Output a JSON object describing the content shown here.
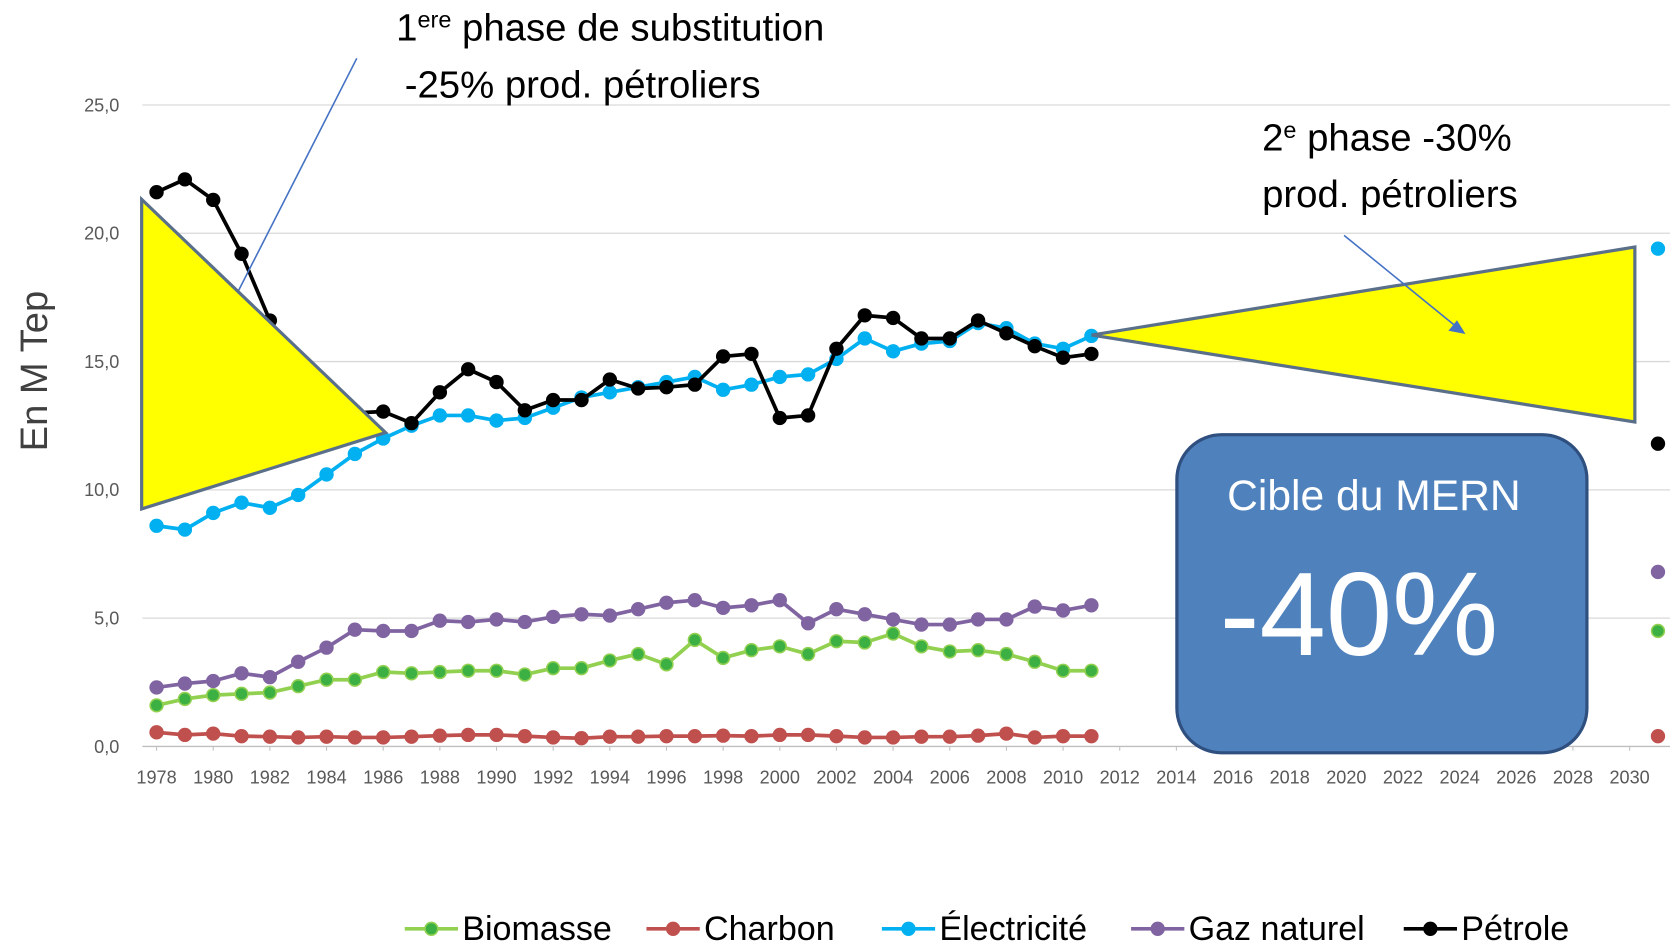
{
  "chart_data": {
    "type": "line",
    "y_label": "En M Tep",
    "x": [
      1978,
      1979,
      1980,
      1981,
      1982,
      1983,
      1984,
      1985,
      1986,
      1987,
      1988,
      1989,
      1990,
      1991,
      1992,
      1993,
      1994,
      1995,
      1996,
      1997,
      1998,
      1999,
      2000,
      2001,
      2002,
      2003,
      2004,
      2005,
      2006,
      2007,
      2008,
      2009,
      2010,
      2011,
      2012,
      2031
    ],
    "xlim": [
      1977.5,
      2031.5
    ],
    "xticks": [
      1978,
      1980,
      1982,
      1984,
      1986,
      1988,
      1990,
      1992,
      1994,
      1996,
      1998,
      2000,
      2002,
      2004,
      2006,
      2008,
      2010,
      2012,
      2014,
      2016,
      2018,
      2020,
      2022,
      2024,
      2026,
      2028,
      2030
    ],
    "ylim": [
      0,
      25
    ],
    "yticks": [
      {
        "value": 0,
        "label": "0,0"
      },
      {
        "value": 5,
        "label": "5,0"
      },
      {
        "value": 10,
        "label": "10,0"
      },
      {
        "value": 15,
        "label": "15,0"
      },
      {
        "value": 20,
        "label": "20,0"
      },
      {
        "value": 25,
        "label": "25,0"
      }
    ],
    "grid": true,
    "legend": "bottom",
    "series": [
      {
        "name": "Biomasse",
        "color": "#92d050",
        "marker_color": "#3cb043",
        "values": [
          1.6,
          1.85,
          2.0,
          2.05,
          2.1,
          2.35,
          2.6,
          2.6,
          2.9,
          2.85,
          2.9,
          2.95,
          2.95,
          2.8,
          3.05,
          3.05,
          3.35,
          3.6,
          3.2,
          4.15,
          3.45,
          3.75,
          3.9,
          3.6,
          4.1,
          4.05,
          4.4,
          3.9,
          3.7,
          3.75,
          3.6,
          3.3,
          2.95,
          2.95,
          null,
          4.5
        ]
      },
      {
        "name": "Charbon",
        "color": "#c0504d",
        "marker_color": "#c0504d",
        "values": [
          0.55,
          0.45,
          0.5,
          0.4,
          0.38,
          0.35,
          0.38,
          0.35,
          0.35,
          0.38,
          0.42,
          0.45,
          0.45,
          0.4,
          0.35,
          0.32,
          0.38,
          0.38,
          0.4,
          0.4,
          0.42,
          0.4,
          0.45,
          0.45,
          0.4,
          0.35,
          0.35,
          0.38,
          0.38,
          0.42,
          0.5,
          0.35,
          0.4,
          0.4,
          null,
          0.4
        ]
      },
      {
        "name": "Électricité",
        "color": "#00b0f0",
        "marker_color": "#00b0f0",
        "values": [
          8.6,
          8.45,
          9.1,
          9.5,
          9.3,
          9.8,
          10.6,
          11.4,
          12.0,
          12.5,
          12.9,
          12.9,
          12.7,
          12.8,
          13.2,
          13.6,
          13.8,
          14.0,
          14.2,
          14.4,
          13.9,
          14.1,
          14.4,
          14.5,
          15.1,
          15.9,
          15.4,
          15.7,
          15.8,
          16.5,
          16.3,
          15.7,
          15.5,
          16.0,
          null,
          19.4
        ]
      },
      {
        "name": "Gaz naturel",
        "color": "#8064a2",
        "marker_color": "#8064a2",
        "values": [
          2.3,
          2.45,
          2.55,
          2.85,
          2.7,
          3.3,
          3.85,
          4.55,
          4.5,
          4.5,
          4.9,
          4.85,
          4.95,
          4.85,
          5.05,
          5.15,
          5.1,
          5.35,
          5.6,
          5.7,
          5.4,
          5.5,
          5.7,
          4.8,
          5.35,
          5.15,
          4.95,
          4.75,
          4.75,
          4.95,
          4.95,
          5.45,
          5.3,
          5.5,
          null,
          6.8
        ]
      },
      {
        "name": "Pétrole",
        "color": "#000000",
        "marker_color": "#000000",
        "values": [
          21.6,
          22.1,
          21.3,
          19.2,
          16.6,
          15.0,
          13.8,
          13.0,
          13.05,
          12.6,
          13.8,
          14.7,
          14.2,
          13.1,
          13.5,
          13.5,
          14.3,
          13.95,
          14.0,
          14.1,
          15.2,
          15.3,
          12.8,
          12.9,
          15.5,
          16.8,
          16.7,
          15.9,
          15.9,
          16.6,
          16.1,
          15.6,
          15.15,
          15.3,
          null,
          11.8
        ]
      }
    ],
    "annotations": {
      "phase1": {
        "num": "1",
        "sup": "ere",
        "rest": " phase de substitution",
        "line2": "-25% prod.  pétroliers"
      },
      "phase2": {
        "num": "2",
        "sup": "e",
        "rest": " phase -30%",
        "line2": "prod. pétroliers"
      },
      "target": {
        "label": "Cible du MERN",
        "value_text": "-40%"
      }
    }
  }
}
